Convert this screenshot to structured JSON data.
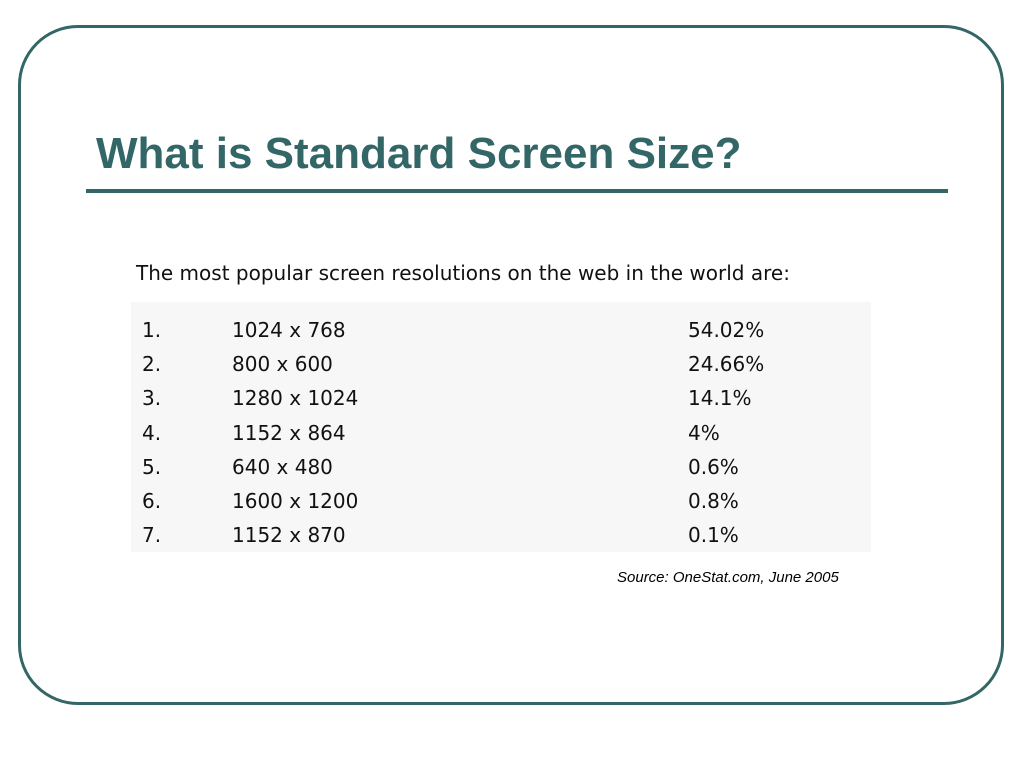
{
  "slide": {
    "title": "What is Standard Screen Size?",
    "intro": "The most popular screen resolutions on the web in the world are:",
    "table": {
      "rows": [
        {
          "rank": "1.",
          "resolution": "1024 x 768",
          "share": "54.02%"
        },
        {
          "rank": "2.",
          "resolution": "800 x 600",
          "share": "24.66%"
        },
        {
          "rank": "3.",
          "resolution": "1280 x 1024",
          "share": "14.1%"
        },
        {
          "rank": "4.",
          "resolution": "1152 x 864",
          "share": "4%"
        },
        {
          "rank": "5.",
          "resolution": "640 x 480",
          "share": "0.6%"
        },
        {
          "rank": "6.",
          "resolution": "1600 x 1200",
          "share": "0.8%"
        },
        {
          "rank": "7.",
          "resolution": "1152 x 870",
          "share": "0.1%"
        }
      ]
    },
    "source": "Source: OneStat.com, June 2005"
  },
  "colors": {
    "accent": "#336666",
    "text": "#111111",
    "table_background": "#f7f7f7"
  }
}
